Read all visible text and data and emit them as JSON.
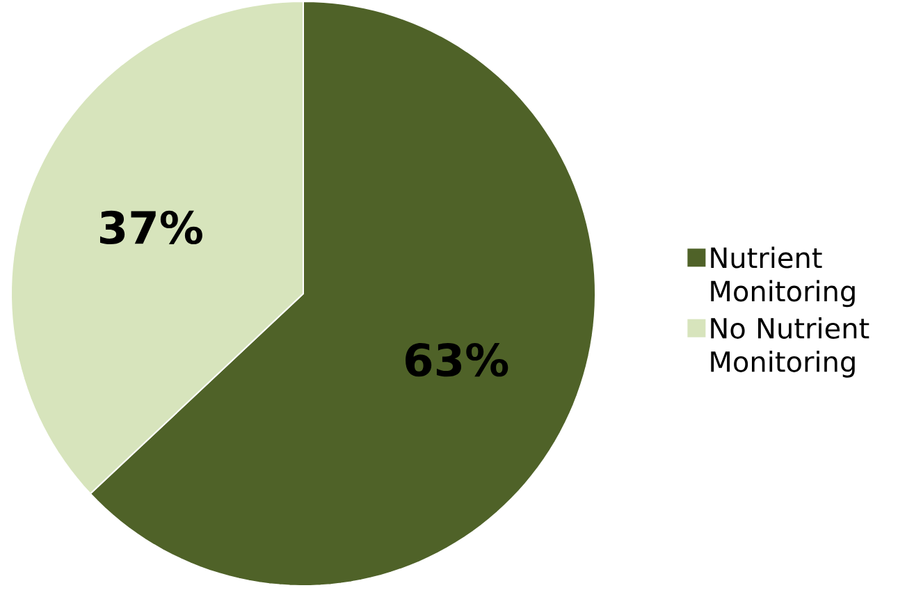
{
  "chart_data": {
    "type": "pie",
    "categories": [
      "Nutrient Monitoring",
      "No Nutrient Monitoring"
    ],
    "values": [
      63,
      37
    ],
    "colors": [
      "#4f6228",
      "#d7e4bc"
    ],
    "value_labels": [
      "63%",
      "37%"
    ],
    "legend": "right"
  }
}
